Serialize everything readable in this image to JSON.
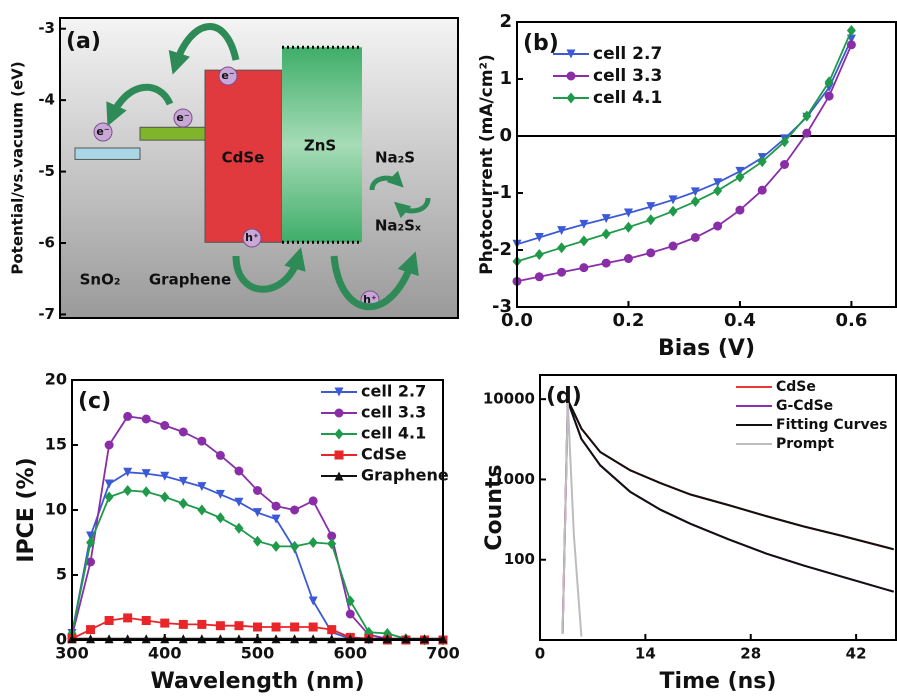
{
  "chart_data": [
    {
      "type": "band-diagram",
      "label": "(a)",
      "ylabel": "Potential/vs.vacuum (eV)",
      "ylim": [
        -7.05,
        -2.85
      ],
      "yticks": [
        -3,
        -4,
        -5,
        -6,
        -7
      ],
      "bands": [
        {
          "name": "SnO₂",
          "top": -4.67,
          "bottom": -4.83,
          "color": "#a9d7e6"
        },
        {
          "name": "Graphene",
          "top": -4.38,
          "bottom": -4.56,
          "color": "#7fb52a"
        },
        {
          "name": "CdSe",
          "top": -3.58,
          "bottom": -5.99,
          "color": "#e0393e"
        },
        {
          "name": "ZnS",
          "top": -3.26,
          "bottom": -5.99,
          "color": "#3fae6a"
        }
      ],
      "annotations": [
        "Na₂S",
        "Na₂Sₓ"
      ],
      "electron": "e⁻",
      "hole": "h⁺"
    },
    {
      "type": "line",
      "label": "(b)",
      "xlabel": "Bias (V)",
      "ylabel": "Photocurrent (mA/cm²)",
      "xlim": [
        0,
        0.68
      ],
      "xticks": [
        {
          "value": 0,
          "label": "0.0"
        },
        0.2,
        0.4,
        0.6
      ],
      "ylim": [
        -3,
        2
      ],
      "yticks": [
        -3,
        -2,
        -1,
        0,
        1,
        2
      ],
      "reference_line": 0,
      "legend": "upper left",
      "x": [
        0,
        0.04,
        0.08,
        0.12,
        0.16,
        0.2,
        0.24,
        0.28,
        0.32,
        0.36,
        0.4,
        0.44,
        0.48,
        0.52,
        0.56,
        0.6
      ],
      "series": [
        {
          "name": "cell 2.7",
          "color": "#3c5ad6",
          "marker": "triangle-down",
          "values": [
            -1.9,
            -1.78,
            -1.66,
            -1.55,
            -1.45,
            -1.35,
            -1.24,
            -1.12,
            -0.98,
            -0.82,
            -0.62,
            -0.38,
            -0.05,
            0.33,
            0.85,
            1.7
          ]
        },
        {
          "name": "cell 3.3",
          "color": "#8a2ea8",
          "marker": "circle",
          "values": [
            -2.55,
            -2.47,
            -2.39,
            -2.31,
            -2.23,
            -2.15,
            -2.05,
            -1.93,
            -1.78,
            -1.58,
            -1.3,
            -0.95,
            -0.5,
            0.05,
            0.7,
            1.6
          ]
        },
        {
          "name": "cell 4.1",
          "color": "#1f9a4a",
          "marker": "diamond",
          "values": [
            -2.2,
            -2.08,
            -1.96,
            -1.84,
            -1.72,
            -1.6,
            -1.47,
            -1.32,
            -1.15,
            -0.96,
            -0.72,
            -0.45,
            -0.1,
            0.35,
            0.95,
            1.85
          ]
        }
      ]
    },
    {
      "type": "line",
      "label": "(c)",
      "xlabel": "Wavelength (nm)",
      "ylabel": "IPCE (%)",
      "xlim": [
        300,
        700
      ],
      "xticks": [
        300,
        400,
        500,
        600,
        700
      ],
      "ylim": [
        0,
        20
      ],
      "yticks": [
        0,
        5,
        10,
        15,
        20
      ],
      "legend": "upper right",
      "x": [
        300,
        320,
        340,
        360,
        380,
        400,
        420,
        440,
        460,
        480,
        500,
        520,
        540,
        560,
        580,
        600,
        620,
        640,
        660,
        680,
        700
      ],
      "series": [
        {
          "name": "cell 2.7",
          "color": "#3c5ad6",
          "marker": "triangle-down",
          "values": [
            0.5,
            8,
            12,
            12.9,
            12.8,
            12.6,
            12.2,
            11.8,
            11.2,
            10.6,
            9.8,
            9.3,
            7,
            3,
            0.6,
            0.1,
            0,
            0,
            0,
            0,
            0
          ]
        },
        {
          "name": "cell 3.3",
          "color": "#8a2ea8",
          "marker": "circle",
          "values": [
            0.3,
            6,
            15,
            17.2,
            17,
            16.5,
            16,
            15.3,
            14.2,
            13,
            11.5,
            10.3,
            10,
            10.7,
            8,
            2,
            0.4,
            0.1,
            0,
            0,
            0
          ]
        },
        {
          "name": "cell 4.1",
          "color": "#1f9a4a",
          "marker": "diamond",
          "values": [
            0.5,
            7.5,
            11,
            11.5,
            11.4,
            11,
            10.5,
            10,
            9.4,
            8.6,
            7.6,
            7.2,
            7.2,
            7.5,
            7.4,
            3,
            0.6,
            0.5,
            0.1,
            0,
            0
          ]
        },
        {
          "name": "CdSe",
          "color": "#e8262a",
          "marker": "square",
          "values": [
            0.1,
            0.8,
            1.5,
            1.7,
            1.5,
            1.3,
            1.2,
            1.2,
            1.1,
            1.1,
            1,
            1,
            1,
            1,
            0.8,
            0.2,
            0.1,
            0,
            0,
            0,
            0
          ]
        },
        {
          "name": "Graphene",
          "color": "#111111",
          "marker": "triangle-up",
          "values": [
            0.1,
            0.1,
            0.1,
            0.1,
            0.1,
            0.1,
            0.1,
            0.1,
            0.1,
            0.1,
            0.1,
            0.1,
            0.1,
            0.1,
            0.1,
            0.1,
            0.1,
            0.1,
            0.1,
            0.1,
            0.1
          ]
        }
      ]
    },
    {
      "type": "line",
      "label": "(d)",
      "xlabel": "Time (ns)",
      "ylabel": "Counts",
      "yscale": "log",
      "xlim": [
        0,
        47.3
      ],
      "xticks": [
        0,
        14,
        28,
        42
      ],
      "ylim": [
        10,
        20000
      ],
      "yticks": [
        100,
        1000,
        10000
      ],
      "legend": "upper right",
      "x": [
        3,
        3.7,
        4.5,
        5.5,
        8,
        12,
        16,
        20,
        25,
        30,
        35,
        40,
        47
      ],
      "series": [
        {
          "name": "CdSe",
          "color": "#e53935",
          "values": [
            12,
            9800,
            6800,
            4300,
            2200,
            1300,
            900,
            650,
            480,
            350,
            260,
            200,
            135
          ]
        },
        {
          "name": "G-CdSe",
          "color": "#8b30b0",
          "values": [
            12,
            9500,
            5800,
            3200,
            1500,
            700,
            420,
            280,
            180,
            120,
            85,
            62,
            40
          ]
        },
        {
          "name": "Fitting Curves",
          "color": "#111111",
          "values": [
            [
              null,
              9800,
              6800,
              4300,
              2200,
              1300,
              900,
              650,
              480,
              350,
              260,
              200,
              135
            ],
            [
              null,
              9500,
              5800,
              3200,
              1500,
              700,
              420,
              280,
              180,
              120,
              85,
              62,
              40
            ]
          ]
        },
        {
          "name": "Prompt",
          "color": "#bdbdbd",
          "values": [
            12,
            9000,
            200,
            11,
            null,
            null,
            null,
            null,
            null,
            null,
            null,
            null,
            null
          ]
        }
      ]
    }
  ]
}
